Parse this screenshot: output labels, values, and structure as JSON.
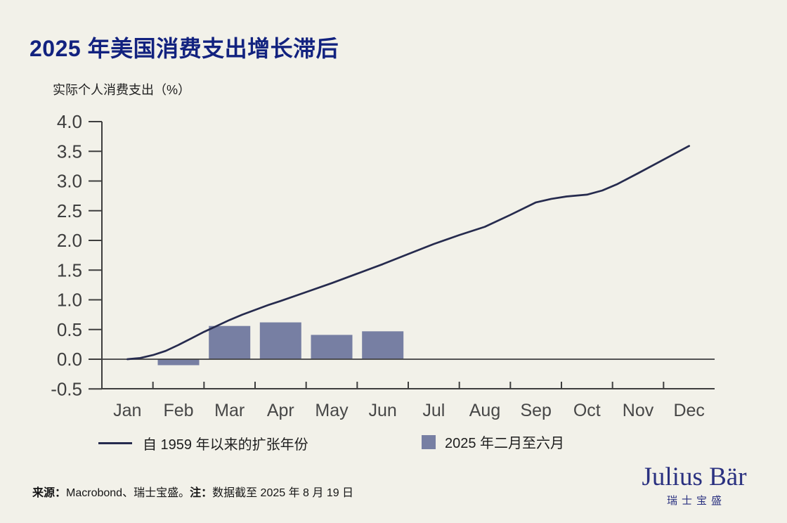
{
  "header": {
    "title": "2025 年美国消费支出增长滞后"
  },
  "chart_data": {
    "type": "combo",
    "title": "2025 年美国消费支出增长滞后",
    "ylabel": "实际个人消费支出（%）",
    "xlabel": "",
    "categories": [
      "Jan",
      "Feb",
      "Mar",
      "Apr",
      "May",
      "Jun",
      "Jul",
      "Aug",
      "Sep",
      "Oct",
      "Nov",
      "Dec"
    ],
    "ylim": [
      -0.5,
      4.0
    ],
    "y_ticks": [
      "4.0",
      "3.5",
      "3.0",
      "2.5",
      "2.0",
      "1.5",
      "1.0",
      "0.5",
      "0.0",
      "-0.5"
    ],
    "grid": false,
    "legend_position": "bottom",
    "series": [
      {
        "name": "自 1959 年以来的扩张年份",
        "type": "line",
        "color": "#262B4E",
        "monthly_values": {
          "Jan": 0.0,
          "Feb": 0.24,
          "Mar": 0.66,
          "Apr": 0.98,
          "May": 1.28,
          "Jun": 1.6,
          "Jul": 1.94,
          "Aug": 2.23,
          "Sep": 2.64,
          "Oct": 2.77,
          "Nov": 3.13,
          "Dec": 3.59
        },
        "points": [
          [
            0,
            0.0
          ],
          [
            0.25,
            0.02
          ],
          [
            0.5,
            0.07
          ],
          [
            0.75,
            0.14
          ],
          [
            1,
            0.24
          ],
          [
            1.25,
            0.35
          ],
          [
            1.5,
            0.46
          ],
          [
            1.75,
            0.56
          ],
          [
            2,
            0.66
          ],
          [
            2.25,
            0.75
          ],
          [
            2.5,
            0.83
          ],
          [
            2.75,
            0.91
          ],
          [
            3,
            0.98
          ],
          [
            3.5,
            1.13
          ],
          [
            4,
            1.28
          ],
          [
            4.5,
            1.44
          ],
          [
            5,
            1.6
          ],
          [
            5.5,
            1.77
          ],
          [
            6,
            1.94
          ],
          [
            6.5,
            2.09
          ],
          [
            7,
            2.23
          ],
          [
            7.5,
            2.43
          ],
          [
            8,
            2.64
          ],
          [
            8.3,
            2.7
          ],
          [
            8.6,
            2.74
          ],
          [
            9,
            2.77
          ],
          [
            9.3,
            2.84
          ],
          [
            9.6,
            2.95
          ],
          [
            10,
            3.13
          ],
          [
            10.5,
            3.36
          ],
          [
            11,
            3.59
          ]
        ]
      },
      {
        "name": "2025 年二月至六月",
        "type": "bar",
        "color": "#777FA3",
        "data": [
          {
            "month": "Feb",
            "value": -0.1
          },
          {
            "month": "Mar",
            "value": 0.56
          },
          {
            "month": "Apr",
            "value": 0.62
          },
          {
            "month": "May",
            "value": 0.41
          },
          {
            "month": "Jun",
            "value": 0.47
          }
        ]
      }
    ]
  },
  "legend": {
    "line_label": "自 1959 年以来的扩张年份",
    "bar_label": "2025 年二月至六月"
  },
  "footer": {
    "source_label": "来源：",
    "source_text": "Macrobond、瑞士宝盛。",
    "note_label": "注：",
    "note_text": "数据截至 2025 年 8 月 19 日"
  },
  "logo": {
    "latin": "Julius Bär",
    "cn": "瑞士宝盛"
  },
  "colors": {
    "background": "#F2F1E9",
    "title": "#12227F",
    "line": "#262B4E",
    "bar": "#777FA3",
    "axis": "#3E3E3E",
    "logo": "#2A3180"
  }
}
